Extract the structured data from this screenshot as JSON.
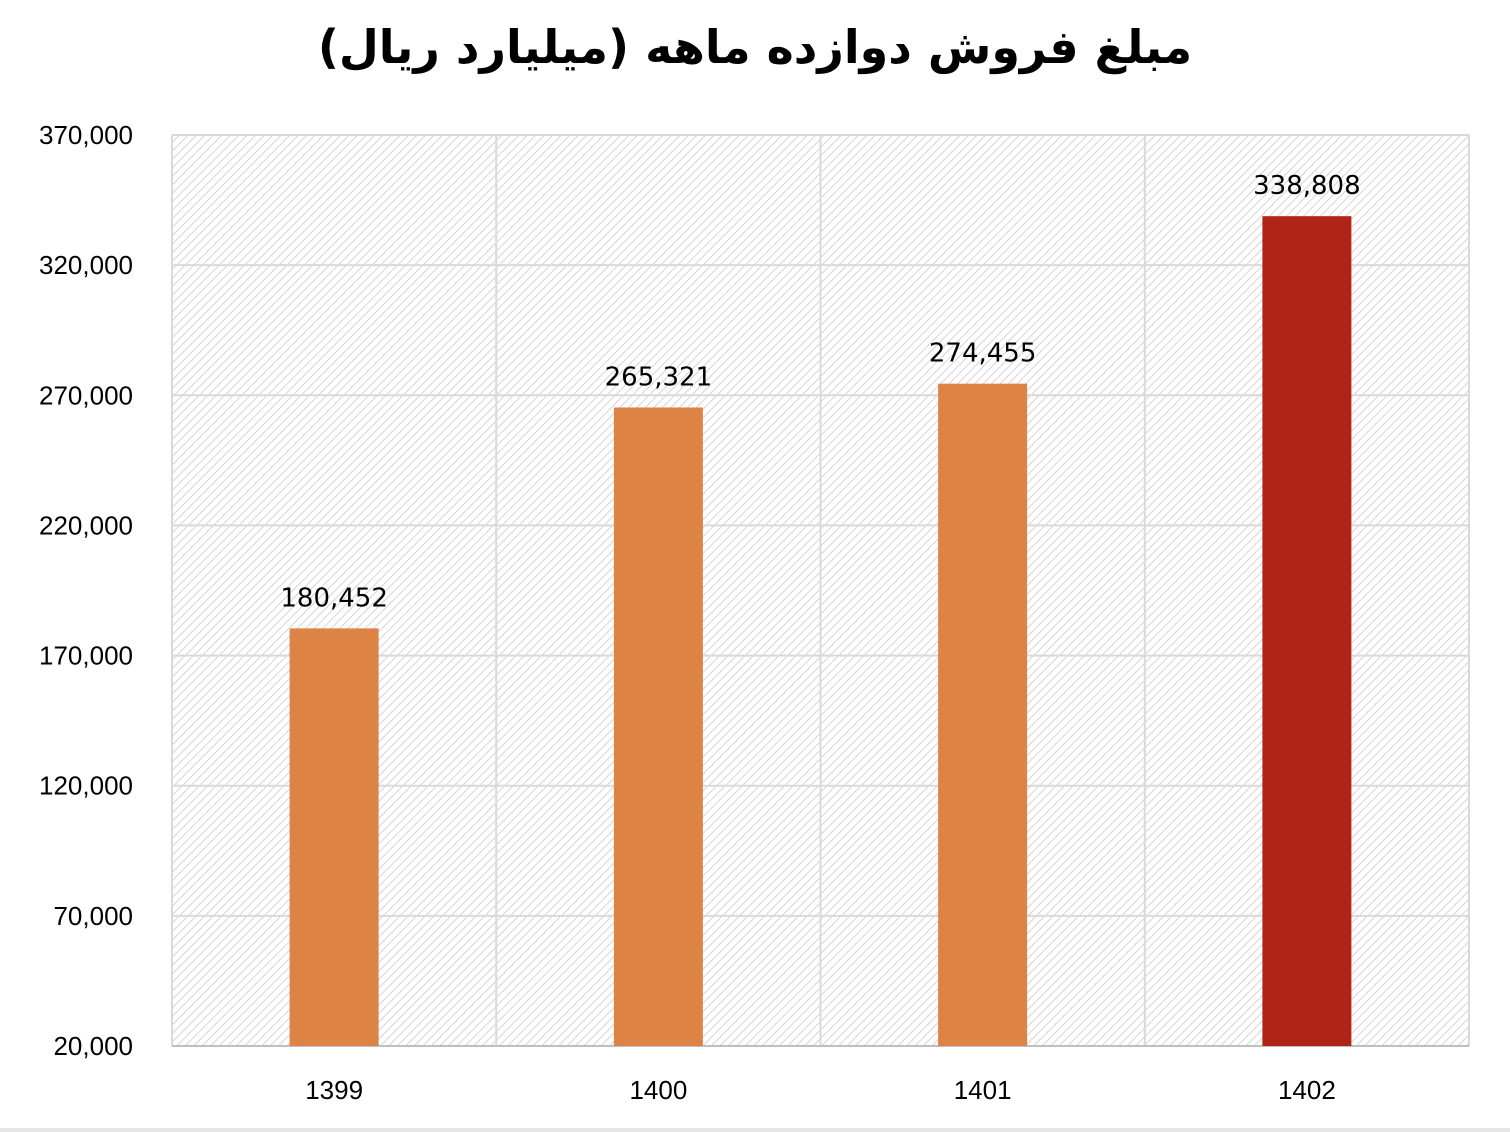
{
  "chart_data": {
    "type": "bar",
    "title": "مبلغ فروش دوازده ماهه (میلیارد ریال)",
    "categories": [
      "1399",
      "1400",
      "1401",
      "1402"
    ],
    "values": [
      180452,
      265321,
      274455,
      338808
    ],
    "value_labels": [
      "180,452",
      "265,321",
      "274,455",
      "338,808"
    ],
    "ylim": [
      20000,
      370000
    ],
    "yticks": [
      20000,
      70000,
      120000,
      170000,
      220000,
      270000,
      320000,
      370000
    ],
    "ytick_labels": [
      "20,000",
      "70,000",
      "120,000",
      "170,000",
      "220,000",
      "270,000",
      "320,000",
      "370,000"
    ],
    "grid": true,
    "legend": "none",
    "colors": {
      "bar": "#de8346",
      "highlight": "#b02418",
      "grid": "#d9d9d9"
    },
    "highlight_index": 3
  }
}
